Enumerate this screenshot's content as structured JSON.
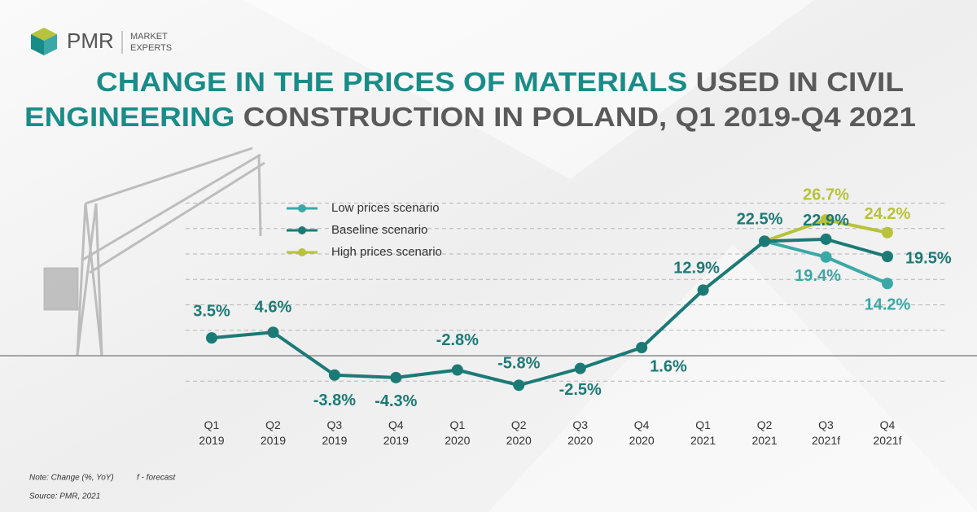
{
  "brand": {
    "name": "PMR",
    "tagline": [
      "MARKET",
      "EXPERTS"
    ]
  },
  "chart_data": {
    "type": "line",
    "title": [
      {
        "text": "CHANGE IN THE PRICES OF MATERIALS",
        "color": "#1a8c88"
      },
      {
        "text": "USED IN CIVIL",
        "color": "#5a5a5a"
      },
      {
        "text": "ENGINEERING",
        "color": "#1a8c88"
      },
      {
        "text": "CONSTRUCTION IN POLAND, Q1 2019-Q4 2021",
        "color": "#5a5a5a"
      }
    ],
    "categories": [
      "Q1 2019",
      "Q2 2019",
      "Q3 2019",
      "Q4 2019",
      "Q1 2020",
      "Q2 2020",
      "Q3 2020",
      "Q4 2020",
      "Q1 2021",
      "Q2 2021",
      "Q3 2021f",
      "Q4 2021f"
    ],
    "series": [
      {
        "name": "Low prices scenario",
        "color": "#3aa8a6",
        "values": [
          null,
          null,
          null,
          null,
          null,
          null,
          null,
          null,
          null,
          22.5,
          19.4,
          14.2
        ],
        "value_labels": [
          null,
          null,
          null,
          null,
          null,
          null,
          null,
          null,
          null,
          null,
          "19.4%",
          "14.2%"
        ]
      },
      {
        "name": "Baseline scenario",
        "color": "#1c7a76",
        "values": [
          3.5,
          4.6,
          -3.8,
          -4.3,
          -2.8,
          -5.8,
          -2.5,
          1.6,
          12.9,
          22.5,
          22.9,
          19.5
        ],
        "value_labels": [
          "3.5%",
          "4.6%",
          "-3.8%",
          "-4.3%",
          "-2.8%",
          "-5.8%",
          "-2.5%",
          "1.6%",
          "12.9%",
          "22.5%",
          "22.9%",
          "19.5%"
        ]
      },
      {
        "name": "High prices scenario",
        "color": "#b8c23a",
        "values": [
          null,
          null,
          null,
          null,
          null,
          null,
          null,
          null,
          null,
          22.5,
          26.7,
          24.2
        ],
        "value_labels": [
          null,
          null,
          null,
          null,
          null,
          null,
          null,
          null,
          null,
          null,
          "26.7%",
          "24.2%"
        ]
      }
    ],
    "ylim": [
      -10,
      30
    ],
    "yticks": [
      -5,
      0,
      5,
      10,
      15,
      20,
      25,
      30
    ],
    "grid": true,
    "notes": [
      "Note: Change (%, YoY)",
      "f - forecast",
      "Source: PMR, 2021"
    ]
  }
}
